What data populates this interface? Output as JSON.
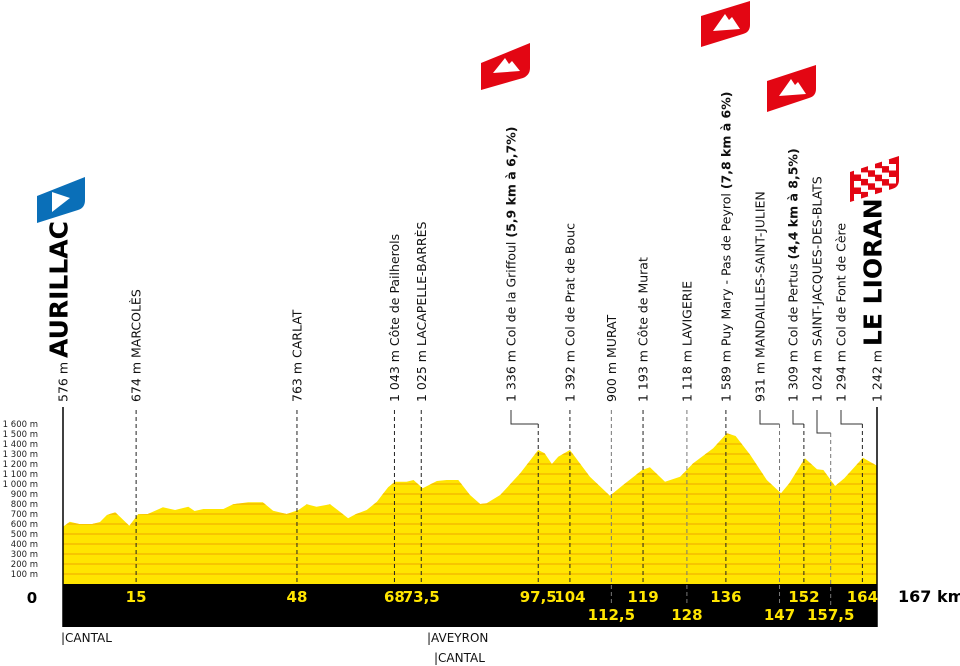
{
  "colors": {
    "profile_fill": "#ffe500",
    "profile_stripe": "#f2b400",
    "band": "#000000",
    "km_text": "#ffe500",
    "start_flag": "#0a6fb8",
    "climb_flag": "#e30613"
  },
  "chart_data": {
    "type": "area",
    "title": "",
    "xlabel": "",
    "ylabel": "",
    "xlim": [
      0,
      167
    ],
    "ylim": [
      0,
      1600
    ],
    "grid": false,
    "x_unit_label": "167 km",
    "y_zero_label": "0",
    "y_ticks": [
      "100 m",
      "200 m",
      "300 m",
      "400 m",
      "500 m",
      "600 m",
      "700 m",
      "800 m",
      "900 m",
      "1 000 m",
      "1 100 m",
      "1 200 m",
      "1 300 m",
      "1 400 m",
      "1 500 m",
      "1 600 m"
    ],
    "profile": {
      "km": [
        0,
        1.4,
        3.3,
        6,
        7.6,
        9,
        10.7,
        11.7,
        13.6,
        15.4,
        17.4,
        20.5,
        23,
        25.7,
        27,
        28.8,
        32.9,
        34.9,
        38,
        41,
        43.1,
        45.9,
        48.3,
        50,
        52,
        54.8,
        56.8,
        58.5,
        60,
        62.3,
        64.4,
        66.7,
        68.1,
        70.5,
        71.9,
        73.8,
        76.7,
        78.7,
        81.1,
        83.5,
        85.6,
        86.9,
        89.7,
        93.8,
        97.5,
        98.8,
        100.3,
        101.6,
        104,
        108.1,
        112.2,
        114.9,
        118.8,
        120.4,
        123.5,
        126.6,
        129.3,
        133.4,
        136.2,
        138,
        141,
        144.4,
        147.3,
        149,
        152.2,
        154.7,
        156,
        158.4,
        160.3,
        164.1,
        167
      ],
      "elevation_m": [
        573,
        623,
        600,
        600,
        620,
        690,
        717,
        673,
        583,
        697,
        700,
        767,
        740,
        773,
        730,
        750,
        750,
        797,
        817,
        817,
        733,
        700,
        740,
        797,
        773,
        797,
        723,
        657,
        697,
        740,
        823,
        967,
        1023,
        1023,
        1040,
        957,
        1030,
        1040,
        1040,
        890,
        800,
        807,
        890,
        1107,
        1340,
        1307,
        1200,
        1273,
        1340,
        1073,
        883,
        990,
        1140,
        1167,
        1023,
        1073,
        1207,
        1357,
        1507,
        1480,
        1290,
        1040,
        907,
        1007,
        1257,
        1147,
        1140,
        980,
        1057,
        1263,
        1183
      ]
    },
    "checkpoints": [
      {
        "km": 0,
        "km_label": "",
        "altitude": "576 m",
        "name": "AURILLAC",
        "detail": "",
        "type": "start"
      },
      {
        "km": 15,
        "km_label": "15",
        "altitude": "674 m",
        "name": "MARCOLÈS",
        "detail": "",
        "type": "town"
      },
      {
        "km": 48,
        "km_label": "48",
        "altitude": "763 m",
        "name": "CARLAT",
        "detail": "",
        "type": "town"
      },
      {
        "km": 68,
        "km_label": "68",
        "altitude": "1 043 m",
        "name": "Côte de Pailherols",
        "detail": "",
        "type": "pass"
      },
      {
        "km": 73.5,
        "km_label": "73,5",
        "altitude": "1 025 m",
        "name": "LACAPELLE-BARRÈS",
        "detail": "",
        "type": "town"
      },
      {
        "km": 97.5,
        "km_label": "97,5",
        "altitude": "1 336 m",
        "name": "Col de la Griffoul",
        "detail": "(5,9 km à 6,7%)",
        "type": "climb"
      },
      {
        "km": 104,
        "km_label": "104",
        "altitude": "1 392 m",
        "name": "Col de Prat de Bouc",
        "detail": "",
        "type": "pass"
      },
      {
        "km": 112.5,
        "km_label": "112,5",
        "altitude": "900 m",
        "name": "MURAT",
        "detail": "",
        "type": "town"
      },
      {
        "km": 119,
        "km_label": "119",
        "altitude": "1 193 m",
        "name": "Côte de Murat",
        "detail": "",
        "type": "pass"
      },
      {
        "km": 128,
        "km_label": "128",
        "altitude": "1 118 m",
        "name": "LAVIGERIE",
        "detail": "",
        "type": "town"
      },
      {
        "km": 136,
        "km_label": "136",
        "altitude": "1 589 m",
        "name": "Puy Mary - Pas de Peyrol",
        "detail": "(7,8 km à 6%)",
        "type": "climb"
      },
      {
        "km": 147,
        "km_label": "147",
        "altitude": "931 m",
        "name": "MANDAILLES-SAINT-JULIEN",
        "detail": "",
        "type": "town"
      },
      {
        "km": 152,
        "km_label": "152",
        "altitude": "1 309 m",
        "name": "Col de Pertus",
        "detail": "(4,4 km à 8,5%)",
        "type": "climb"
      },
      {
        "km": 157.5,
        "km_label": "157,5",
        "altitude": "1 024 m",
        "name": "SAINT-JACQUES-DES-BLATS",
        "detail": "",
        "type": "town"
      },
      {
        "km": 164,
        "km_label": "164",
        "altitude": "1 294 m",
        "name": "Col de Font de Cère",
        "detail": "",
        "type": "pass"
      },
      {
        "km": 167,
        "km_label": "",
        "altitude": "1 242 m",
        "name": "LE LIORAN",
        "detail": "",
        "type": "finish"
      }
    ],
    "regions": [
      "|CANTAL",
      "|AVEYRON",
      "|CANTAL"
    ]
  }
}
